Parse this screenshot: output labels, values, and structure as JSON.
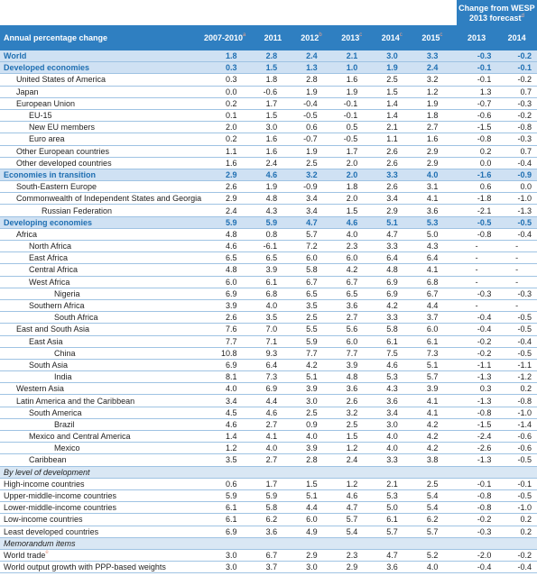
{
  "header": {
    "forecast_title_line1": "Change from WESP",
    "forecast_title_line2": "2013 forecast",
    "forecast_title_note": "d",
    "row_label": "Annual percentage change",
    "columns": [
      {
        "label": "2007-2010",
        "note": "a"
      },
      {
        "label": "2011",
        "note": ""
      },
      {
        "label": "2012",
        "note": "b"
      },
      {
        "label": "2013",
        "note": "c"
      },
      {
        "label": "2014",
        "note": "c"
      },
      {
        "label": "2015",
        "note": "c"
      }
    ],
    "forecast_columns": [
      "2013",
      "2014"
    ]
  },
  "rows": [
    {
      "label": "World",
      "level": 0,
      "style": "major",
      "v": [
        "1.8",
        "2.8",
        "2.4",
        "2.1",
        "3.0",
        "3.3"
      ],
      "f": [
        "-0.3",
        "-0.2"
      ]
    },
    {
      "label": "Developed economies",
      "level": 0,
      "style": "major",
      "v": [
        "0.3",
        "1.5",
        "1.3",
        "1.0",
        "1.9",
        "2.4"
      ],
      "f": [
        "-0.1",
        "-0.1"
      ]
    },
    {
      "label": "United States of America",
      "level": 1,
      "v": [
        "0.3",
        "1.8",
        "2.8",
        "1.6",
        "2.5",
        "3.2"
      ],
      "f": [
        "-0.1",
        "-0.2"
      ]
    },
    {
      "label": "Japan",
      "level": 1,
      "v": [
        "0.0",
        "-0.6",
        "1.9",
        "1.9",
        "1.5",
        "1.2"
      ],
      "f": [
        "1.3",
        "0.7"
      ]
    },
    {
      "label": "European Union",
      "level": 1,
      "v": [
        "0.2",
        "1.7",
        "-0.4",
        "-0.1",
        "1.4",
        "1.9"
      ],
      "f": [
        "-0.7",
        "-0.3"
      ]
    },
    {
      "label": "EU-15",
      "level": 2,
      "v": [
        "0.1",
        "1.5",
        "-0.5",
        "-0.1",
        "1.4",
        "1.8"
      ],
      "f": [
        "-0.6",
        "-0.2"
      ]
    },
    {
      "label": "New EU members",
      "level": 2,
      "v": [
        "2.0",
        "3.0",
        "0.6",
        "0.5",
        "2.1",
        "2.7"
      ],
      "f": [
        "-1.5",
        "-0.8"
      ]
    },
    {
      "label": "Euro area",
      "level": 2,
      "v": [
        "0.2",
        "1.6",
        "-0.7",
        "-0.5",
        "1.1",
        "1.6"
      ],
      "f": [
        "-0.8",
        "-0.3"
      ]
    },
    {
      "label": "Other European countries",
      "level": 1,
      "v": [
        "1.1",
        "1.6",
        "1.9",
        "1.7",
        "2.6",
        "2.9"
      ],
      "f": [
        "0.2",
        "0.7"
      ]
    },
    {
      "label": "Other developed countries",
      "level": 1,
      "v": [
        "1.6",
        "2.4",
        "2.5",
        "2.0",
        "2.6",
        "2.9"
      ],
      "f": [
        "0.0",
        "-0.4"
      ]
    },
    {
      "label": "Economies in transition",
      "level": 0,
      "style": "major",
      "v": [
        "2.9",
        "4.6",
        "3.2",
        "2.0",
        "3.3",
        "4.0"
      ],
      "f": [
        "-1.6",
        "-0.9"
      ]
    },
    {
      "label": "South-Eastern Europe",
      "level": 1,
      "v": [
        "2.6",
        "1.9",
        "-0.9",
        "1.8",
        "2.6",
        "3.1"
      ],
      "f": [
        "0.6",
        "0.0"
      ]
    },
    {
      "label": "Commonwealth of Independent States and Georgia",
      "level": 1,
      "v": [
        "2.9",
        "4.8",
        "3.4",
        "2.0",
        "3.4",
        "4.1"
      ],
      "f": [
        "-1.8",
        "-1.0"
      ]
    },
    {
      "label": "Russian Federation",
      "level": 3,
      "v": [
        "2.4",
        "4.3",
        "3.4",
        "1.5",
        "2.9",
        "3.6"
      ],
      "f": [
        "-2.1",
        "-1.3"
      ]
    },
    {
      "label": "Developing economies",
      "level": 0,
      "style": "major",
      "v": [
        "5.9",
        "5.9",
        "4.7",
        "4.6",
        "5.1",
        "5.3"
      ],
      "f": [
        "-0.5",
        "-0.5"
      ]
    },
    {
      "label": "Africa",
      "level": 1,
      "v": [
        "4.8",
        "0.8",
        "5.7",
        "4.0",
        "4.7",
        "5.0"
      ],
      "f": [
        "-0.8",
        "-0.4"
      ]
    },
    {
      "label": "North Africa",
      "level": 2,
      "v": [
        "4.6",
        "-6.1",
        "7.2",
        "2.3",
        "3.3",
        "4.3"
      ],
      "f": [
        "-",
        "-"
      ]
    },
    {
      "label": "East Africa",
      "level": 2,
      "v": [
        "6.5",
        "6.5",
        "6.0",
        "6.0",
        "6.4",
        "6.4"
      ],
      "f": [
        "-",
        "-"
      ]
    },
    {
      "label": "Central Africa",
      "level": 2,
      "v": [
        "4.8",
        "3.9",
        "5.8",
        "4.2",
        "4.8",
        "4.1"
      ],
      "f": [
        "-",
        "-"
      ]
    },
    {
      "label": "West Africa",
      "level": 2,
      "v": [
        "6.0",
        "6.1",
        "6.7",
        "6.7",
        "6.9",
        "6.8"
      ],
      "f": [
        "-",
        "-"
      ]
    },
    {
      "label": "Nigeria",
      "level": 4,
      "v": [
        "6.9",
        "6.8",
        "6.5",
        "6.5",
        "6.9",
        "6.7"
      ],
      "f": [
        "-0.3",
        "-0.3"
      ]
    },
    {
      "label": "Southern Africa",
      "level": 2,
      "v": [
        "3.9",
        "4.0",
        "3.5",
        "3.6",
        "4.2",
        "4.4"
      ],
      "f": [
        "-",
        "-"
      ]
    },
    {
      "label": "South Africa",
      "level": 4,
      "v": [
        "2.6",
        "3.5",
        "2.5",
        "2.7",
        "3.3",
        "3.7"
      ],
      "f": [
        "-0.4",
        "-0.5"
      ]
    },
    {
      "label": "East and South Asia",
      "level": 1,
      "v": [
        "7.6",
        "7.0",
        "5.5",
        "5.6",
        "5.8",
        "6.0"
      ],
      "f": [
        "-0.4",
        "-0.5"
      ]
    },
    {
      "label": "East Asia",
      "level": 2,
      "v": [
        "7.7",
        "7.1",
        "5.9",
        "6.0",
        "6.1",
        "6.1"
      ],
      "f": [
        "-0.2",
        "-0.4"
      ]
    },
    {
      "label": "China",
      "level": 4,
      "v": [
        "10.8",
        "9.3",
        "7.7",
        "7.7",
        "7.5",
        "7.3"
      ],
      "f": [
        "-0.2",
        "-0.5"
      ]
    },
    {
      "label": "South Asia",
      "level": 2,
      "v": [
        "6.9",
        "6.4",
        "4.2",
        "3.9",
        "4.6",
        "5.1"
      ],
      "f": [
        "-1.1",
        "-1.1"
      ]
    },
    {
      "label": "India",
      "level": 4,
      "v": [
        "8.1",
        "7.3",
        "5.1",
        "4.8",
        "5.3",
        "5.7"
      ],
      "f": [
        "-1.3",
        "-1.2"
      ]
    },
    {
      "label": "Western Asia",
      "level": 1,
      "v": [
        "4.0",
        "6.9",
        "3.9",
        "3.6",
        "4.3",
        "3.9"
      ],
      "f": [
        "0.3",
        "0.2"
      ]
    },
    {
      "label": "Latin America and the Caribbean",
      "level": 1,
      "v": [
        "3.4",
        "4.4",
        "3.0",
        "2.6",
        "3.6",
        "4.1"
      ],
      "f": [
        "-1.3",
        "-0.8"
      ]
    },
    {
      "label": "South America",
      "level": 2,
      "v": [
        "4.5",
        "4.6",
        "2.5",
        "3.2",
        "3.4",
        "4.1"
      ],
      "f": [
        "-0.8",
        "-1.0"
      ]
    },
    {
      "label": "Brazil",
      "level": 4,
      "v": [
        "4.6",
        "2.7",
        "0.9",
        "2.5",
        "3.0",
        "4.2"
      ],
      "f": [
        "-1.5",
        "-1.4"
      ]
    },
    {
      "label": "Mexico and Central America",
      "level": 2,
      "v": [
        "1.4",
        "4.1",
        "4.0",
        "1.5",
        "4.0",
        "4.2"
      ],
      "f": [
        "-2.4",
        "-0.6"
      ]
    },
    {
      "label": "Mexico",
      "level": 4,
      "v": [
        "1.2",
        "4.0",
        "3.9",
        "1.2",
        "4.0",
        "4.2"
      ],
      "f": [
        "-2.6",
        "-0.6"
      ]
    },
    {
      "label": "Caribbean",
      "level": 2,
      "v": [
        "3.5",
        "2.7",
        "2.8",
        "2.4",
        "3.3",
        "3.8"
      ],
      "f": [
        "-1.3",
        "-0.5"
      ]
    },
    {
      "label": "By level of development",
      "level": 0,
      "style": "section"
    },
    {
      "label": "High-income countries",
      "level": 0,
      "v": [
        "0.6",
        "1.7",
        "1.5",
        "1.2",
        "2.1",
        "2.5"
      ],
      "f": [
        "-0.1",
        "-0.1"
      ]
    },
    {
      "label": "Upper-middle-income countries",
      "level": 0,
      "v": [
        "5.9",
        "5.9",
        "5.1",
        "4.6",
        "5.3",
        "5.4"
      ],
      "f": [
        "-0.8",
        "-0.5"
      ]
    },
    {
      "label": "Lower-middle-income countries",
      "level": 0,
      "v": [
        "6.1",
        "5.8",
        "4.4",
        "4.7",
        "5.0",
        "5.4"
      ],
      "f": [
        "-0.8",
        "-1.0"
      ]
    },
    {
      "label": "Low-income countries",
      "level": 0,
      "v": [
        "6.1",
        "6.2",
        "6.0",
        "5.7",
        "6.1",
        "6.2"
      ],
      "f": [
        "-0.2",
        "0.2"
      ]
    },
    {
      "label": "Least developed countries",
      "level": 0,
      "v": [
        "6.9",
        "3.6",
        "4.9",
        "5.4",
        "5.7",
        "5.7"
      ],
      "f": [
        "-0.3",
        "0.2"
      ]
    },
    {
      "label": "Memorandum items",
      "level": 0,
      "style": "section"
    },
    {
      "label": "World trade",
      "note": "e",
      "level": 0,
      "v": [
        "3.0",
        "6.7",
        "2.9",
        "2.3",
        "4.7",
        "5.2"
      ],
      "f": [
        "-2.0",
        "-0.2"
      ]
    },
    {
      "label": "World output growth with PPP-based weights",
      "level": 0,
      "v": [
        "3.0",
        "3.7",
        "3.0",
        "2.9",
        "3.6",
        "4.0"
      ],
      "f": [
        "-0.4",
        "-0.4"
      ]
    }
  ]
}
